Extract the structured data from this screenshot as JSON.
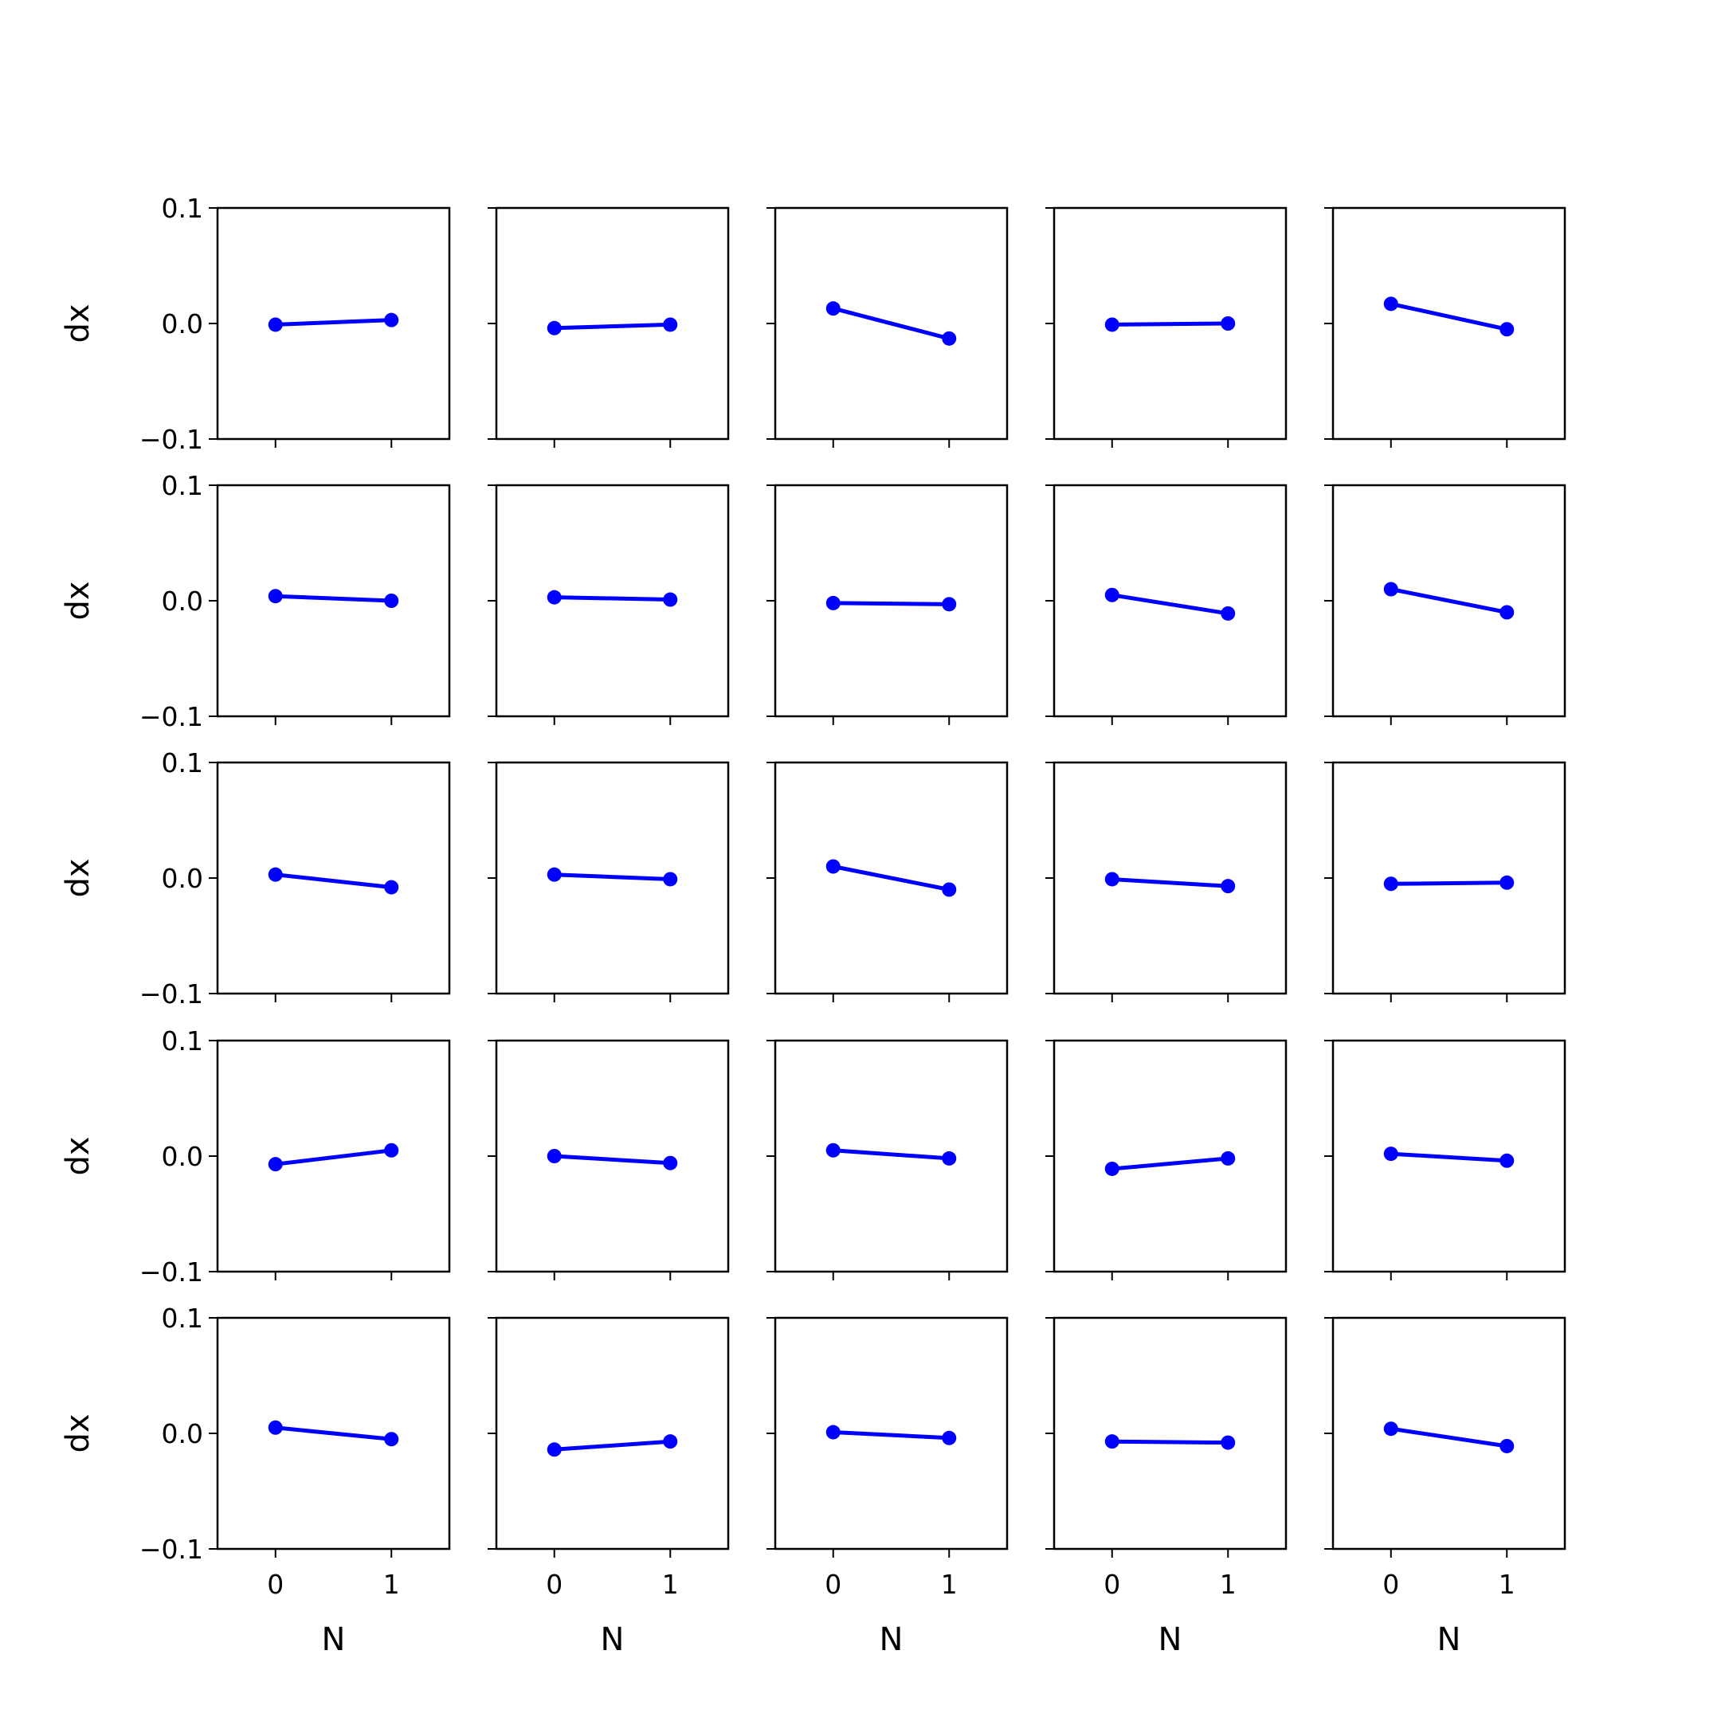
{
  "chart_data": {
    "type": "line",
    "layout": "5x5 grid of subplots, shared axes",
    "xlabel": "N",
    "ylabel": "dx",
    "x": [
      0,
      1
    ],
    "xticks": [
      "0",
      "1"
    ],
    "xlim": [
      -0.5,
      1.5
    ],
    "ylim": [
      -0.1,
      0.1
    ],
    "yticks": [
      "−0.1",
      "0.0",
      "0.1"
    ],
    "grid": false,
    "color": "#0000ff",
    "marker": "circle",
    "subplots": [
      {
        "row": 1,
        "col": 1,
        "values": [
          -0.001,
          0.003
        ]
      },
      {
        "row": 1,
        "col": 2,
        "values": [
          -0.004,
          -0.001
        ]
      },
      {
        "row": 1,
        "col": 3,
        "values": [
          0.013,
          -0.013
        ]
      },
      {
        "row": 1,
        "col": 4,
        "values": [
          -0.001,
          0.0
        ]
      },
      {
        "row": 1,
        "col": 5,
        "values": [
          0.017,
          -0.005
        ]
      },
      {
        "row": 2,
        "col": 1,
        "values": [
          0.004,
          0.0
        ]
      },
      {
        "row": 2,
        "col": 2,
        "values": [
          0.003,
          0.001
        ]
      },
      {
        "row": 2,
        "col": 3,
        "values": [
          -0.002,
          -0.003
        ]
      },
      {
        "row": 2,
        "col": 4,
        "values": [
          0.005,
          -0.011
        ]
      },
      {
        "row": 2,
        "col": 5,
        "values": [
          0.01,
          -0.01
        ]
      },
      {
        "row": 3,
        "col": 1,
        "values": [
          0.003,
          -0.008
        ]
      },
      {
        "row": 3,
        "col": 2,
        "values": [
          0.003,
          -0.001
        ]
      },
      {
        "row": 3,
        "col": 3,
        "values": [
          0.01,
          -0.01
        ]
      },
      {
        "row": 3,
        "col": 4,
        "values": [
          -0.001,
          -0.007
        ]
      },
      {
        "row": 3,
        "col": 5,
        "values": [
          -0.005,
          -0.004
        ]
      },
      {
        "row": 4,
        "col": 1,
        "values": [
          -0.007,
          0.005
        ]
      },
      {
        "row": 4,
        "col": 2,
        "values": [
          0.0,
          -0.006
        ]
      },
      {
        "row": 4,
        "col": 3,
        "values": [
          0.005,
          -0.002
        ]
      },
      {
        "row": 4,
        "col": 4,
        "values": [
          -0.011,
          -0.002
        ]
      },
      {
        "row": 4,
        "col": 5,
        "values": [
          0.002,
          -0.004
        ]
      },
      {
        "row": 5,
        "col": 1,
        "values": [
          0.005,
          -0.005
        ]
      },
      {
        "row": 5,
        "col": 2,
        "values": [
          -0.014,
          -0.007
        ]
      },
      {
        "row": 5,
        "col": 3,
        "values": [
          0.001,
          -0.004
        ]
      },
      {
        "row": 5,
        "col": 4,
        "values": [
          -0.007,
          -0.008
        ]
      },
      {
        "row": 5,
        "col": 5,
        "values": [
          0.004,
          -0.011
        ]
      }
    ]
  }
}
